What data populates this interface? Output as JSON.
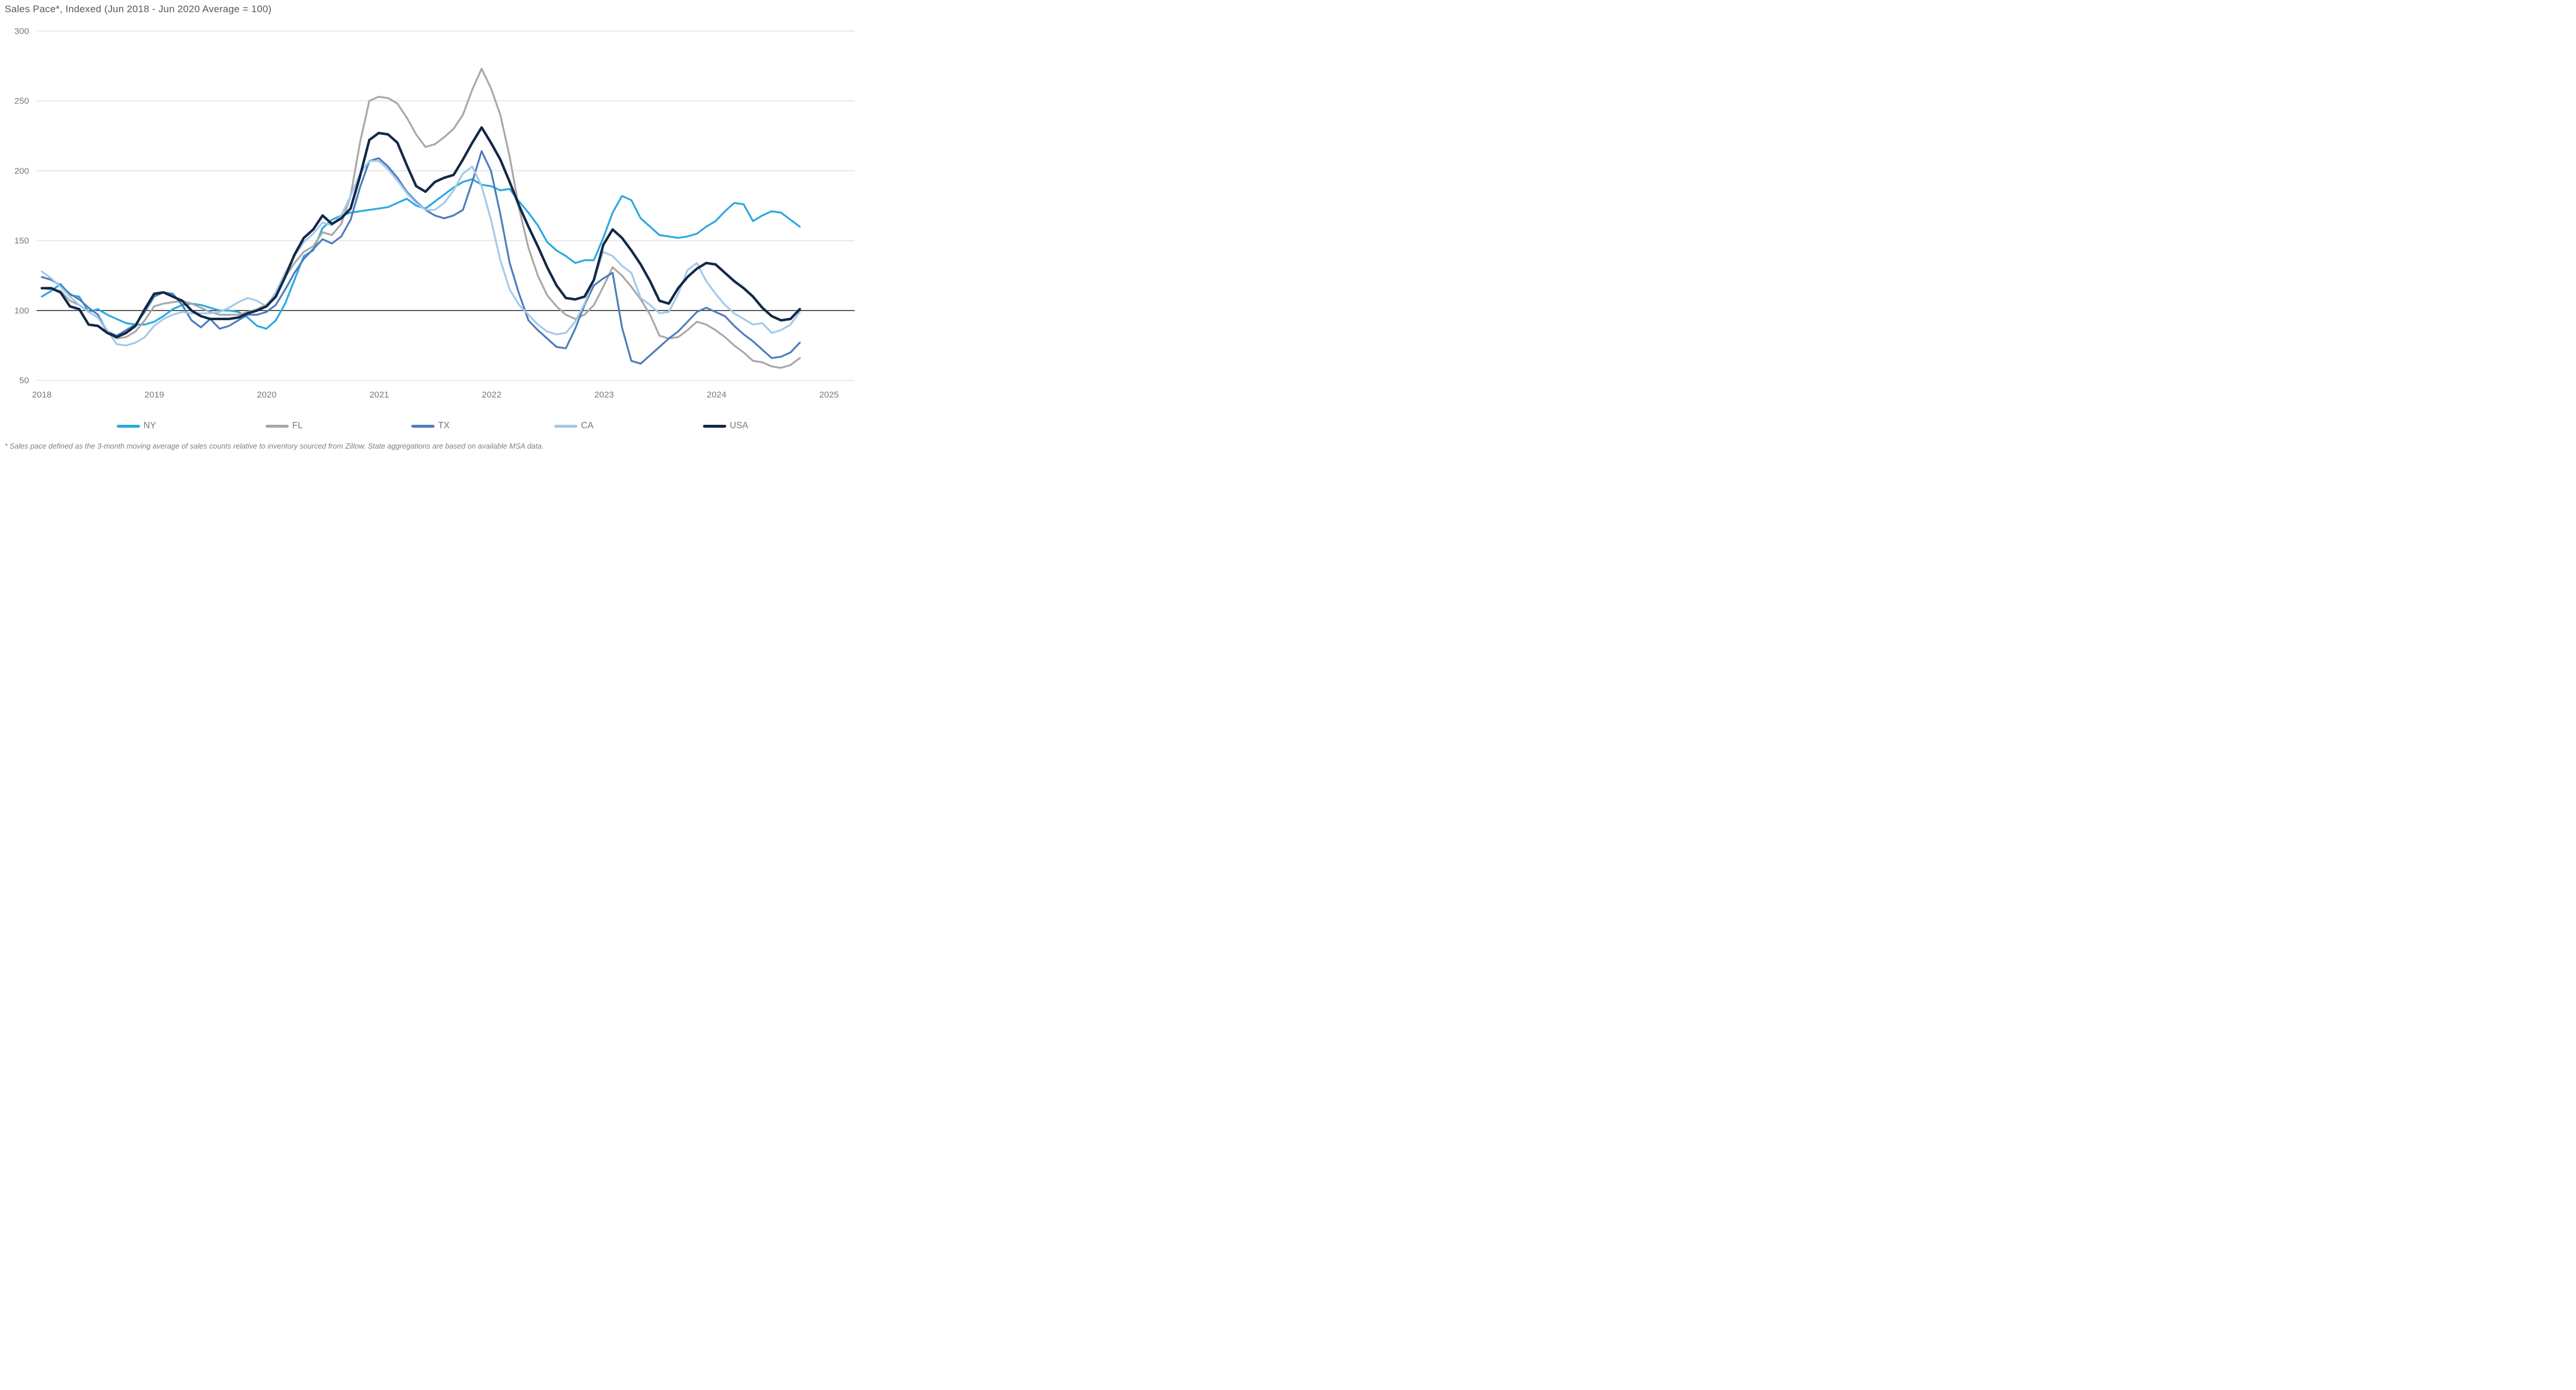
{
  "title": "Sales Pace*, Indexed (Jun 2018 - Jun 2020 Average = 100)",
  "footnote": "* Sales pace defined as the 3-month moving average of sales counts relative to inventory sourced from Zillow. State aggregations are based on available MSA data.",
  "chart_data": {
    "type": "line",
    "title": "Sales Pace*, Indexed (Jun 2018 - Jun 2020 Average = 100)",
    "xlabel": "",
    "ylabel": "",
    "ylim": [
      50,
      300
    ],
    "y_ticks": [
      300,
      250,
      200,
      150,
      100,
      50
    ],
    "baseline_value": 100,
    "grid": "horizontal",
    "legend_position": "bottom",
    "x_tick_labels": [
      "2018",
      "2019",
      "2020",
      "2021",
      "2022",
      "2023",
      "2024",
      "2025"
    ],
    "x_months_start": "2018-01",
    "x_months_end": "2024-10",
    "series": [
      {
        "name": "NY",
        "color": "#2AA9E0",
        "values": [
          110,
          114,
          119,
          111,
          110,
          99,
          101,
          97,
          94,
          91,
          90,
          90,
          92,
          96,
          101,
          104,
          105,
          104,
          102,
          100,
          100,
          99,
          95,
          89,
          87,
          93,
          105,
          122,
          139,
          143,
          159,
          165,
          168,
          170,
          171,
          172,
          173,
          174,
          177,
          180,
          175,
          173,
          178,
          183,
          188,
          192,
          194,
          190,
          189,
          186,
          187,
          178,
          170,
          161,
          149,
          143,
          139,
          134,
          136,
          136,
          152,
          170,
          182,
          179,
          166,
          160,
          154,
          153,
          152,
          153,
          155,
          160,
          164,
          171,
          177,
          176,
          164,
          168,
          171,
          170,
          165,
          160
        ]
      },
      {
        "name": "FL",
        "color": "#A8A8A8",
        "values": [
          116,
          115,
          114,
          107,
          104,
          99,
          95,
          85,
          80,
          81,
          85,
          93,
          103,
          105,
          106,
          107,
          105,
          102,
          99,
          97,
          97,
          97,
          99,
          101,
          104,
          112,
          124,
          134,
          142,
          146,
          156,
          154,
          162,
          182,
          220,
          250,
          253,
          252,
          248,
          238,
          226,
          217,
          219,
          224,
          230,
          240,
          258,
          273,
          259,
          240,
          210,
          173,
          145,
          125,
          111,
          103,
          97,
          94,
          97,
          104,
          117,
          131,
          125,
          117,
          108,
          97,
          82,
          80,
          81,
          86,
          92,
          90,
          86,
          81,
          75,
          70,
          64,
          63,
          60,
          59,
          61,
          66
        ]
      },
      {
        "name": "TX",
        "color": "#4E7CBC",
        "values": [
          124,
          122,
          118,
          112,
          108,
          102,
          97,
          85,
          82,
          86,
          90,
          99,
          110,
          113,
          112,
          104,
          93,
          88,
          94,
          87,
          89,
          93,
          97,
          97,
          99,
          104,
          115,
          127,
          137,
          144,
          151,
          148,
          153,
          165,
          188,
          207,
          209,
          203,
          195,
          185,
          178,
          172,
          168,
          166,
          168,
          172,
          192,
          214,
          200,
          169,
          134,
          112,
          93,
          86,
          80,
          74,
          73,
          87,
          104,
          118,
          123,
          127,
          88,
          64,
          62,
          68,
          74,
          80,
          85,
          92,
          99,
          102,
          99,
          96,
          89,
          83,
          78,
          72,
          66,
          67,
          70,
          77
        ]
      },
      {
        "name": "CA",
        "color": "#A3C9E8",
        "values": [
          128,
          123,
          117,
          110,
          104,
          99,
          95,
          86,
          76,
          75,
          77,
          81,
          89,
          94,
          97,
          99,
          98,
          98,
          98,
          99,
          102,
          106,
          109,
          107,
          103,
          113,
          127,
          139,
          149,
          155,
          163,
          161,
          168,
          182,
          198,
          207,
          207,
          201,
          193,
          184,
          177,
          172,
          172,
          177,
          186,
          198,
          203,
          189,
          165,
          136,
          115,
          104,
          97,
          90,
          85,
          83,
          84,
          92,
          105,
          122,
          142,
          139,
          132,
          127,
          109,
          104,
          98,
          99,
          112,
          129,
          134,
          121,
          112,
          104,
          98,
          94,
          90,
          91,
          84,
          86,
          90,
          99
        ]
      },
      {
        "name": "USA",
        "color": "#132847",
        "values": [
          116,
          116,
          113,
          103,
          101,
          90,
          89,
          84,
          81,
          84,
          89,
          101,
          112,
          113,
          110,
          107,
          100,
          96,
          94,
          94,
          94,
          95,
          98,
          100,
          103,
          110,
          124,
          140,
          152,
          158,
          168,
          162,
          166,
          173,
          196,
          222,
          227,
          226,
          220,
          204,
          189,
          185,
          192,
          195,
          197,
          208,
          220,
          231,
          220,
          208,
          192,
          175,
          160,
          146,
          131,
          118,
          109,
          108,
          110,
          122,
          147,
          158,
          152,
          143,
          133,
          121,
          107,
          105,
          116,
          124,
          130,
          134,
          133,
          127,
          121,
          116,
          110,
          102,
          96,
          93,
          94,
          101
        ]
      }
    ],
    "legend": [
      {
        "label": "NY",
        "color": "#2AA9E0"
      },
      {
        "label": "FL",
        "color": "#A8A8A8"
      },
      {
        "label": "TX",
        "color": "#4E7CBC"
      },
      {
        "label": "CA",
        "color": "#A3C9E8"
      },
      {
        "label": "USA",
        "color": "#132847"
      }
    ]
  },
  "colors": {
    "background": "#FFFFFF",
    "gridline": "#D9D9D9",
    "baseline": "#111111",
    "axis_text": "#77787B",
    "title_text": "#58595B",
    "footnote_text": "#7F8084"
  }
}
